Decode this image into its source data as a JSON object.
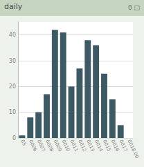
{
  "chart_data": {
    "type": "bar",
    "title": "daily",
    "subtitle": "0 □",
    "categories": [
      "05",
      "0006",
      "0007",
      "0008",
      "0009",
      "0010",
      "0011",
      "0012",
      "0013",
      "0014",
      "0015",
      "0016",
      "0017",
      "0018.00"
    ],
    "values": [
      1,
      8,
      10,
      17,
      42,
      41,
      20,
      27,
      38,
      36,
      25,
      15,
      5,
      0
    ],
    "color": "#3d5963",
    "ylim": [
      0,
      45
    ],
    "yticks": [
      0,
      10,
      20,
      30,
      40
    ],
    "grid": true
  }
}
